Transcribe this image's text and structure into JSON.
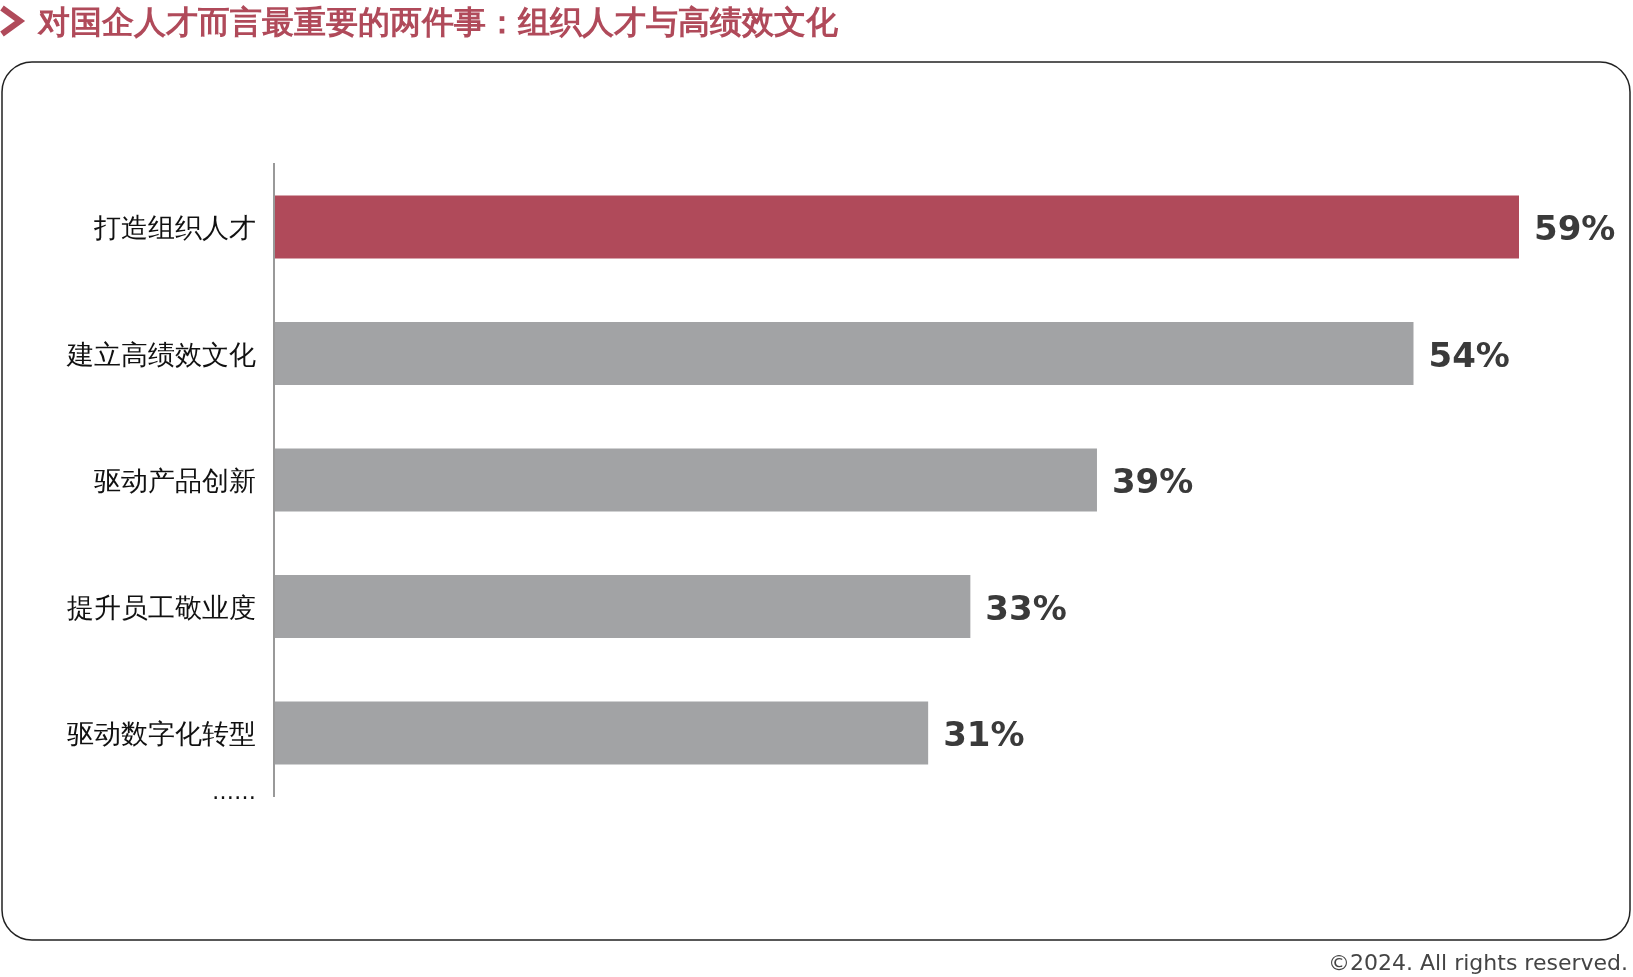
{
  "chart_data": {
    "type": "bar",
    "orientation": "horizontal",
    "title": "对国企人才而言最重要的两件事：组织人才与高绩效文化",
    "categories": [
      "打造组织人才",
      "建立高绩效文化",
      "驱动产品创新",
      "提升员工敬业度",
      "驱动数字化转型"
    ],
    "values": [
      59,
      54,
      39,
      33,
      31
    ],
    "colors": [
      "#b04a5a",
      "#a2a3a5",
      "#a2a3a5",
      "#a2a3a5",
      "#a2a3a5"
    ],
    "data_labels": true,
    "value_labels": [
      "59%",
      "54%",
      "39%",
      "33%",
      "31%"
    ],
    "annotations": [
      "……",
      "©2024. All rights reserved."
    ]
  }
}
